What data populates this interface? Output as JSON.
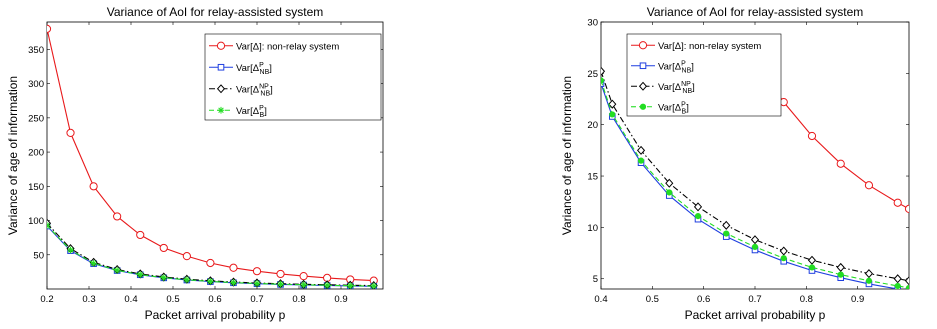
{
  "chart_data": [
    {
      "type": "line",
      "title": "Variance of AoI for relay-assisted system",
      "xlabel": "Packet arrival probability p",
      "ylabel": "Variance of age of information",
      "xlim": [
        0.2,
        1.0
      ],
      "ylim": [
        0,
        390
      ],
      "xticks": [
        0.2,
        0.3,
        0.4,
        0.5,
        0.6,
        0.7,
        0.8,
        0.9
      ],
      "yticks": [
        50,
        100,
        150,
        200,
        250,
        300,
        350
      ],
      "grid": false,
      "legend_position": "top-right",
      "series": [
        {
          "name": "Var[Δ]: non-relay system",
          "color": "#e8191b",
          "line": "solid",
          "marker": "circle",
          "x": [
            0.2,
            0.256,
            0.311,
            0.367,
            0.422,
            0.478,
            0.533,
            0.589,
            0.644,
            0.7,
            0.756,
            0.811,
            0.867,
            0.922,
            0.978
          ],
          "y": [
            380,
            228,
            150,
            106,
            79,
            60,
            48,
            38,
            31,
            26,
            22,
            18.8,
            16.2,
            14,
            12.2
          ]
        },
        {
          "name": "Var[Δ_NB^P]",
          "color": "#1f3fe0",
          "line": "solid",
          "marker": "square",
          "x": [
            0.2,
            0.256,
            0.311,
            0.367,
            0.422,
            0.478,
            0.533,
            0.589,
            0.644,
            0.7,
            0.756,
            0.811,
            0.867,
            0.922,
            0.978
          ],
          "y": [
            92,
            56,
            37,
            27,
            20.8,
            16.3,
            13.1,
            10.8,
            9.1,
            7.8,
            6.7,
            5.8,
            5.1,
            4.5,
            4.0
          ]
        },
        {
          "name": "Var[Δ_NB^NP]",
          "color": "#000000",
          "line": "dashdot",
          "marker": "diamond",
          "x": [
            0.2,
            0.256,
            0.311,
            0.367,
            0.422,
            0.478,
            0.533,
            0.589,
            0.644,
            0.7,
            0.756,
            0.811,
            0.867,
            0.922,
            0.978
          ],
          "y": [
            96,
            59,
            39,
            28.5,
            22,
            17.5,
            14.3,
            12,
            10.2,
            8.8,
            7.7,
            6.8,
            6.1,
            5.5,
            5.0
          ]
        },
        {
          "name": "Var[Δ_B^P]",
          "color": "#22dd22",
          "line": "dashed",
          "marker": "asterisk",
          "x": [
            0.2,
            0.256,
            0.311,
            0.367,
            0.422,
            0.478,
            0.533,
            0.589,
            0.644,
            0.7,
            0.756,
            0.811,
            0.867,
            0.922,
            0.978
          ],
          "y": [
            93,
            57,
            37.5,
            27.3,
            21,
            16.5,
            13.4,
            11.1,
            9.4,
            8.1,
            7.0,
            6.1,
            5.4,
            4.8,
            4.3
          ]
        }
      ]
    },
    {
      "type": "line",
      "title": "Variance of AoI for relay-assisted system",
      "xlabel": "Packet arrival probability p",
      "ylabel": "Variance of age of information",
      "xlim": [
        0.4,
        1.0
      ],
      "ylim": [
        4,
        30
      ],
      "xticks": [
        0.4,
        0.5,
        0.6,
        0.7,
        0.8,
        0.9
      ],
      "yticks": [
        5,
        10,
        15,
        20,
        25,
        30
      ],
      "grid": false,
      "legend_position": "top-left",
      "series": [
        {
          "name": "Var[Δ]: non-relay system",
          "color": "#e8191b",
          "line": "solid",
          "marker": "circle",
          "x": [
            0.7,
            0.756,
            0.811,
            0.867,
            0.922,
            0.978,
            1.0
          ],
          "y": [
            26,
            22.2,
            18.9,
            16.2,
            14.1,
            12.4,
            11.8
          ]
        },
        {
          "name": "Var[Δ_NB^P]",
          "color": "#1f3fe0",
          "line": "solid",
          "marker": "square",
          "x": [
            0.4,
            0.422,
            0.478,
            0.533,
            0.589,
            0.644,
            0.7,
            0.756,
            0.811,
            0.867,
            0.922,
            0.978,
            1.0
          ],
          "y": [
            24,
            20.8,
            16.3,
            13.1,
            10.8,
            9.1,
            7.8,
            6.7,
            5.8,
            5.1,
            4.5,
            4.0,
            3.8
          ]
        },
        {
          "name": "Var[Δ_NB^NP]",
          "color": "#000000",
          "line": "dashdot",
          "marker": "diamond",
          "x": [
            0.4,
            0.422,
            0.478,
            0.533,
            0.589,
            0.644,
            0.7,
            0.756,
            0.811,
            0.867,
            0.922,
            0.978,
            1.0
          ],
          "y": [
            25.2,
            22,
            17.5,
            14.3,
            12,
            10.2,
            8.8,
            7.7,
            6.8,
            6.1,
            5.5,
            5.0,
            4.8
          ]
        },
        {
          "name": "Var[Δ_B^P]",
          "color": "#22dd22",
          "line": "dashed",
          "marker": "circle-filled",
          "x": [
            0.4,
            0.422,
            0.478,
            0.533,
            0.589,
            0.644,
            0.7,
            0.756,
            0.811,
            0.867,
            0.922,
            0.978,
            1.0
          ],
          "y": [
            24.3,
            21,
            16.5,
            13.4,
            11.1,
            9.4,
            8.1,
            7.0,
            6.1,
            5.4,
            4.8,
            4.3,
            4.1
          ]
        }
      ]
    }
  ]
}
